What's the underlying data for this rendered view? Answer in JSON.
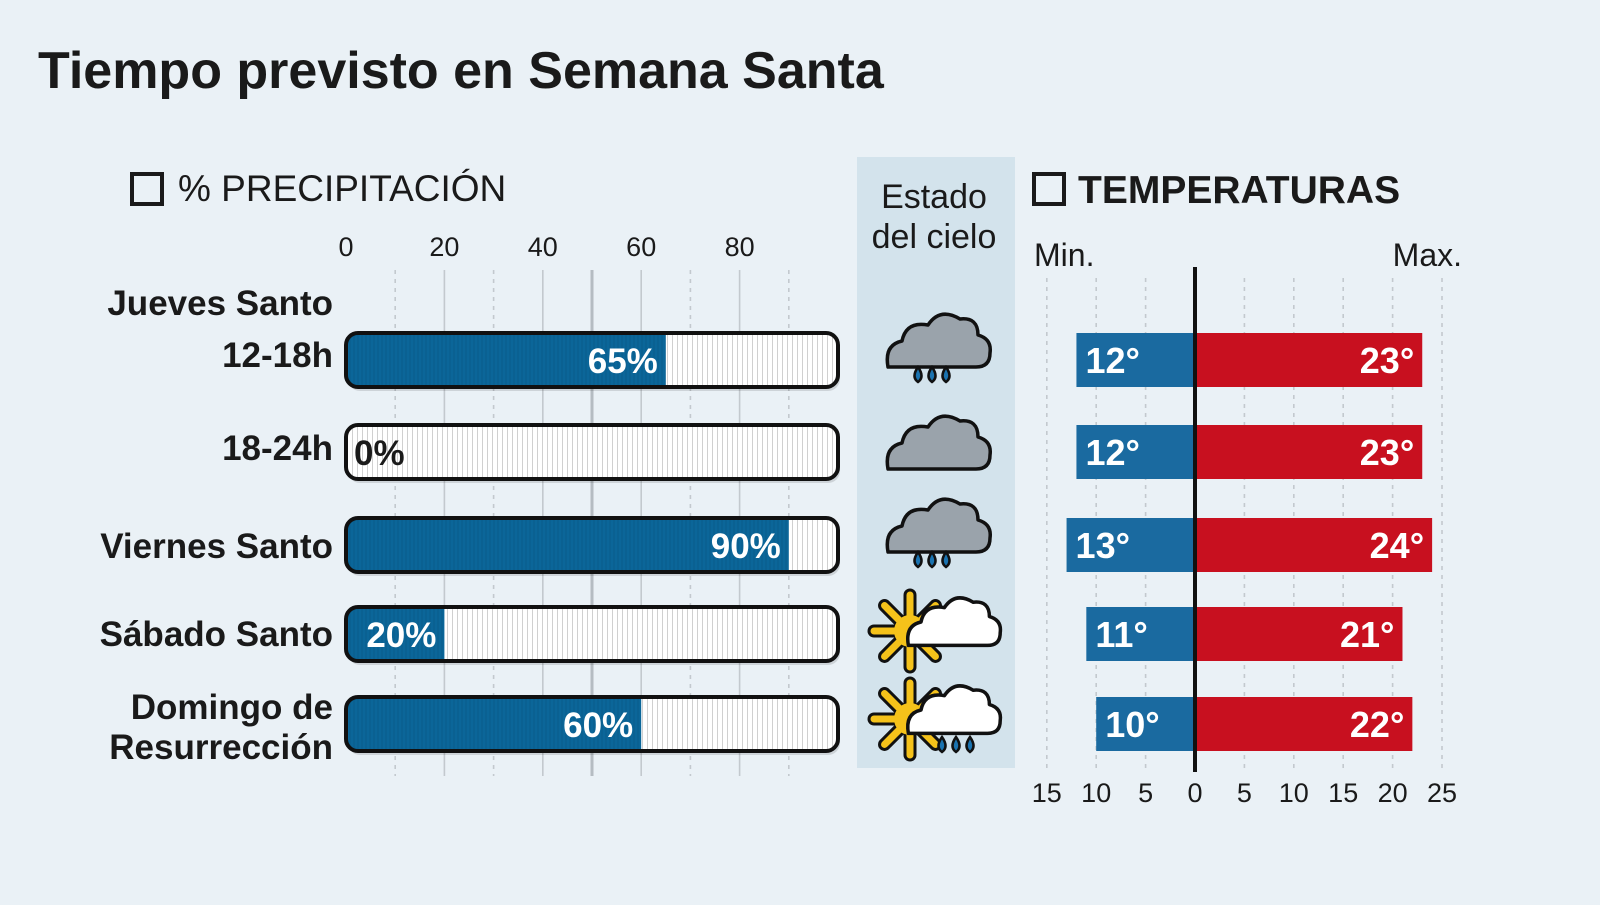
{
  "title": "Tiempo previsto en Semana Santa",
  "colors": {
    "background": "#eaf1f6",
    "precip": "#0b6699",
    "min": "#1a6aa0",
    "max": "#c8101f",
    "sky_panel": "#d3e3ec"
  },
  "chart_data": [
    {
      "type": "bar",
      "title": "% PRECIPITACIÓN",
      "orientation": "horizontal",
      "xlim": [
        0,
        100
      ],
      "ticks": [
        "0",
        "20",
        "40",
        "60",
        "80"
      ],
      "categories": [
        {
          "day": "Jueves Santo",
          "period": "12-18h"
        },
        {
          "day": "",
          "period": "18-24h"
        },
        {
          "day": "Viernes Santo",
          "period": ""
        },
        {
          "day": "Sábado Santo",
          "period": ""
        },
        {
          "day": "Domingo de",
          "period": "Resurrección"
        }
      ],
      "values": [
        65,
        0,
        90,
        20,
        60
      ],
      "labels": [
        "65%",
        "0%",
        "90%",
        "20%",
        "60%"
      ]
    },
    {
      "type": "table",
      "title": "Estado del cielo",
      "title_lines": [
        "Estado",
        "del cielo"
      ],
      "icons": [
        "cloud-rain-icon",
        "cloud-icon",
        "cloud-rain-icon",
        "sun-cloud-icon",
        "sun-cloud-rain-icon"
      ]
    },
    {
      "type": "bar",
      "title": "TEMPERATURAS",
      "orientation": "horizontal-diverging",
      "min_label": "Min.",
      "max_label": "Max.",
      "xlim": [
        -15,
        25
      ],
      "ticks": [
        "15",
        "10",
        "5",
        "0",
        "5",
        "10",
        "15",
        "20",
        "25"
      ],
      "series": [
        {
          "name": "Min.",
          "values": [
            12,
            12,
            13,
            11,
            10
          ],
          "labels": [
            "12°",
            "12°",
            "13°",
            "11°",
            "10°"
          ]
        },
        {
          "name": "Max.",
          "values": [
            23,
            23,
            24,
            21,
            22
          ],
          "labels": [
            "23°",
            "23°",
            "24°",
            "21°",
            "22°"
          ]
        }
      ]
    }
  ]
}
